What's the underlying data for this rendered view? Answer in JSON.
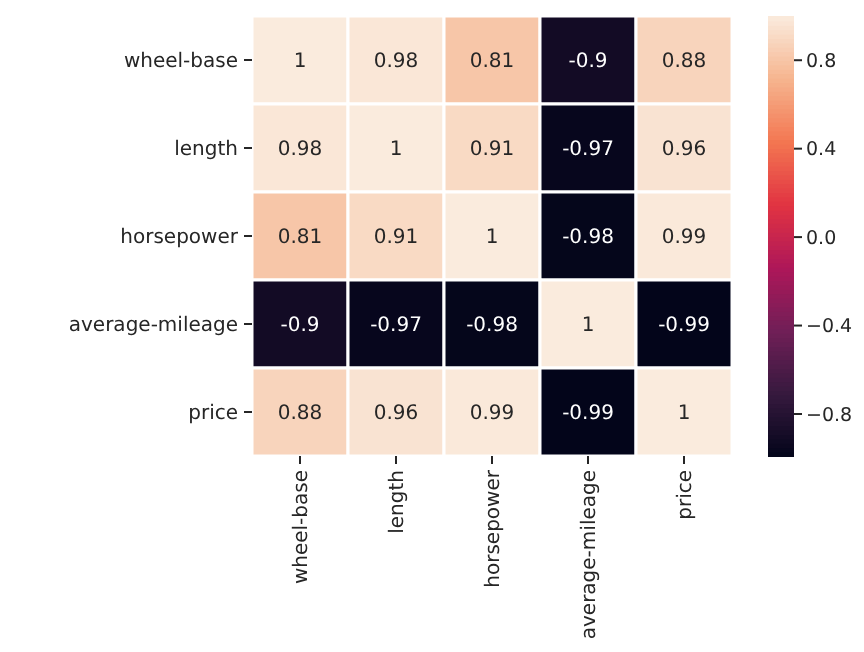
{
  "chart_data": {
    "type": "heatmap",
    "categories": [
      "wheel-base",
      "length",
      "horsepower",
      "average-mileage",
      "price"
    ],
    "y_categories": [
      "wheel-base",
      "length",
      "horsepower",
      "average-mileage",
      "price"
    ],
    "cells": [
      [
        1,
        0.98,
        0.81,
        -0.9,
        0.88
      ],
      [
        0.98,
        1,
        0.91,
        -0.97,
        0.96
      ],
      [
        0.81,
        0.91,
        1,
        -0.98,
        0.99
      ],
      [
        -0.9,
        -0.97,
        -0.98,
        1,
        -0.99
      ],
      [
        0.88,
        0.96,
        0.99,
        -0.99,
        1
      ]
    ],
    "clim": [
      -0.99,
      1
    ],
    "cticks": [
      {
        "value": 0.8,
        "label": "0.8"
      },
      {
        "value": 0.4,
        "label": "0.4"
      },
      {
        "value": 0,
        "label": "0.0"
      },
      {
        "value": -0.4,
        "label": "−0.4"
      },
      {
        "value": -0.8,
        "label": "−0.8"
      }
    ],
    "data_labels": true
  }
}
